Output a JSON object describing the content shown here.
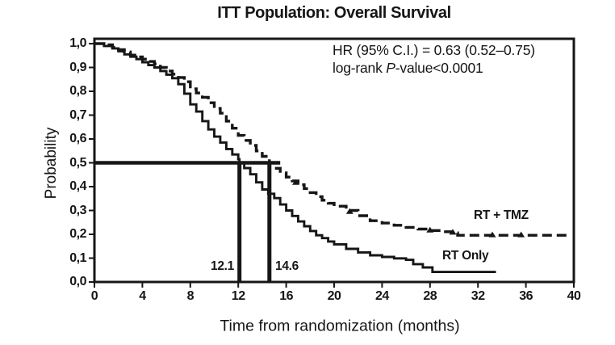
{
  "title": "ITT Population: Overall Survival",
  "annotation": {
    "line1": "HR (95% C.I.) = 0.63 (0.52–0.75)",
    "line2_prefix": "log-rank ",
    "line2_p": "P",
    "line2_suffix": "-value<0.0001"
  },
  "colors": {
    "ink": "#161616",
    "background": "#ffffff"
  },
  "chart_data": {
    "type": "line",
    "subtype": "kaplan-meier-step",
    "title": "ITT Population: Overall Survival",
    "xlabel": "Time from randomization (months)",
    "ylabel": "Probability",
    "xlim": [
      0,
      40
    ],
    "ylim": [
      0.0,
      1.0
    ],
    "grid": false,
    "x_ticks": [
      0,
      4,
      8,
      12,
      16,
      20,
      24,
      28,
      32,
      36,
      40
    ],
    "y_ticks": [
      {
        "label": "1,0",
        "value": 1.0
      },
      {
        "label": "0,9",
        "value": 0.9
      },
      {
        "label": "0,8",
        "value": 0.8
      },
      {
        "label": "0,7",
        "value": 0.7
      },
      {
        "label": "0,6",
        "value": 0.6
      },
      {
        "label": "0,5",
        "value": 0.5
      },
      {
        "label": "0,4",
        "value": 0.4
      },
      {
        "label": "0,3",
        "value": 0.3
      },
      {
        "label": "0,2",
        "value": 0.2
      },
      {
        "label": "0,1",
        "value": 0.1
      },
      {
        "label": "0,0",
        "value": 0.0
      }
    ],
    "series": [
      {
        "name": "RT + TMZ",
        "style": "dashed",
        "median_months": 14.6,
        "points": [
          [
            0,
            1.0
          ],
          [
            0.8,
            0.995
          ],
          [
            1.5,
            0.985
          ],
          [
            2,
            0.975
          ],
          [
            2.5,
            0.965
          ],
          [
            3,
            0.952
          ],
          [
            3.5,
            0.944
          ],
          [
            4,
            0.935
          ],
          [
            4.5,
            0.925
          ],
          [
            5,
            0.915
          ],
          [
            5.5,
            0.9
          ],
          [
            6,
            0.885
          ],
          [
            6.5,
            0.872
          ],
          [
            7,
            0.858
          ],
          [
            7.5,
            0.84
          ],
          [
            8,
            0.81
          ],
          [
            8.5,
            0.793
          ],
          [
            9,
            0.775
          ],
          [
            9.5,
            0.752
          ],
          [
            10,
            0.728
          ],
          [
            10.5,
            0.708
          ],
          [
            11,
            0.675
          ],
          [
            11.5,
            0.645
          ],
          [
            12,
            0.615
          ],
          [
            12.5,
            0.594
          ],
          [
            13,
            0.573
          ],
          [
            13.5,
            0.55
          ],
          [
            14,
            0.527
          ],
          [
            14.6,
            0.5
          ],
          [
            15,
            0.477
          ],
          [
            15.5,
            0.458
          ],
          [
            16,
            0.44
          ],
          [
            16.5,
            0.424
          ],
          [
            17,
            0.408
          ],
          [
            17.5,
            0.392
          ],
          [
            18,
            0.375
          ],
          [
            18.5,
            0.358
          ],
          [
            19,
            0.343
          ],
          [
            19.5,
            0.33
          ],
          [
            20,
            0.318
          ],
          [
            21,
            0.3
          ],
          [
            22,
            0.278
          ],
          [
            23,
            0.257
          ],
          [
            24,
            0.247
          ],
          [
            25,
            0.238
          ],
          [
            26,
            0.229
          ],
          [
            27,
            0.222
          ],
          [
            28,
            0.216
          ],
          [
            29,
            0.211
          ],
          [
            30,
            0.206
          ],
          [
            30.3,
            0.196
          ],
          [
            32,
            0.196
          ],
          [
            34,
            0.196
          ],
          [
            36,
            0.196
          ],
          [
            39.4,
            0.196
          ]
        ],
        "censor_marks": [
          [
            16.8,
            0.416
          ],
          [
            21.3,
            0.294
          ],
          [
            28.0,
            0.216
          ],
          [
            29.9,
            0.207
          ],
          [
            33.2,
            0.196
          ],
          [
            35.6,
            0.196
          ]
        ]
      },
      {
        "name": "RT Only",
        "style": "solid",
        "median_months": 12.1,
        "points": [
          [
            0,
            1.0
          ],
          [
            0.8,
            0.99
          ],
          [
            1.5,
            0.98
          ],
          [
            2,
            0.968
          ],
          [
            2.5,
            0.955
          ],
          [
            3,
            0.945
          ],
          [
            3.5,
            0.935
          ],
          [
            4,
            0.922
          ],
          [
            4.5,
            0.91
          ],
          [
            5,
            0.9
          ],
          [
            5.5,
            0.885
          ],
          [
            6,
            0.87
          ],
          [
            6.5,
            0.855
          ],
          [
            7,
            0.83
          ],
          [
            7.5,
            0.79
          ],
          [
            8,
            0.745
          ],
          [
            8.5,
            0.715
          ],
          [
            9,
            0.675
          ],
          [
            9.5,
            0.64
          ],
          [
            10,
            0.61
          ],
          [
            10.5,
            0.585
          ],
          [
            11,
            0.558
          ],
          [
            11.5,
            0.535
          ],
          [
            12,
            0.515
          ],
          [
            12.1,
            0.5
          ],
          [
            12.5,
            0.478
          ],
          [
            13,
            0.452
          ],
          [
            13.5,
            0.418
          ],
          [
            14,
            0.388
          ],
          [
            14.5,
            0.37
          ],
          [
            15,
            0.352
          ],
          [
            15.5,
            0.325
          ],
          [
            16,
            0.3
          ],
          [
            16.5,
            0.277
          ],
          [
            17,
            0.254
          ],
          [
            17.5,
            0.234
          ],
          [
            18,
            0.214
          ],
          [
            18.5,
            0.196
          ],
          [
            19,
            0.184
          ],
          [
            19.5,
            0.17
          ],
          [
            20,
            0.158
          ],
          [
            21,
            0.139
          ],
          [
            22,
            0.124
          ],
          [
            23,
            0.112
          ],
          [
            24,
            0.105
          ],
          [
            25,
            0.099
          ],
          [
            26,
            0.093
          ],
          [
            26.6,
            0.075
          ],
          [
            27.4,
            0.061
          ],
          [
            28.2,
            0.042
          ],
          [
            30,
            0.042
          ],
          [
            33.5,
            0.042
          ]
        ],
        "censor_marks": []
      }
    ],
    "median_reference": {
      "probability": 0.5,
      "h_line_from_month": 0,
      "h_line_to_month": 15.5,
      "vertical_lines_months": [
        12.1,
        14.6
      ]
    },
    "median_labels": [
      "12.1",
      "14.6"
    ],
    "legend": {
      "position": "on-plot-right",
      "entries": [
        "RT + TMZ",
        "RT Only"
      ]
    }
  }
}
